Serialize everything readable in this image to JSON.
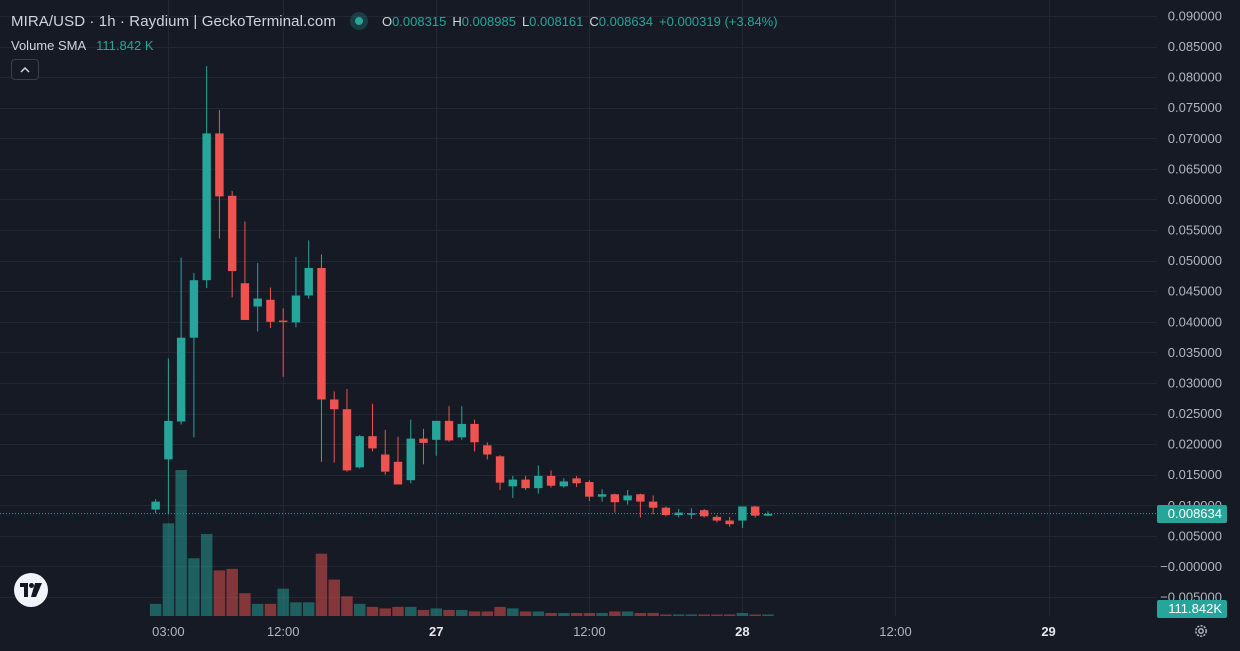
{
  "legend": {
    "title": "MIRA/USD · 1h · Raydium | GeckoTerminal.com",
    "ohlc": [
      {
        "key": "O",
        "value": "0.008315"
      },
      {
        "key": "H",
        "value": "0.008985"
      },
      {
        "key": "L",
        "value": "0.008161"
      },
      {
        "key": "C",
        "value": "0.008634"
      }
    ],
    "change": "+0.000319 (+3.84%)"
  },
  "volume_legend": {
    "label": "Volume SMA",
    "value": "111.842 K"
  },
  "last_price_label": "0.008634",
  "last_volume_label": "111.842K",
  "colors": {
    "up": "#26a69a",
    "down": "#ef5350",
    "background": "#161a25",
    "grid": "#232733"
  },
  "icons": {
    "collapse": "chevron-up-icon",
    "logo": "tradingview-logo-icon",
    "settings": "gear-icon"
  },
  "chart_data": {
    "type": "candlestick",
    "y_axis": {
      "ticks": [
        "0.090000",
        "0.085000",
        "0.080000",
        "0.075000",
        "0.070000",
        "0.065000",
        "0.060000",
        "0.055000",
        "0.050000",
        "0.045000",
        "0.040000",
        "0.035000",
        "0.030000",
        "0.025000",
        "0.020000",
        "0.015000",
        "0.010000",
        "0.005000",
        "−0.000000",
        "−0.005000"
      ],
      "range": [
        -0.0055,
        0.0925
      ]
    },
    "x_axis": {
      "ticks": [
        "03:00",
        "12:00",
        "27",
        "12:00",
        "28",
        "12:00",
        "29"
      ],
      "bold_ticks": [
        "27",
        "28",
        "29"
      ],
      "tick_hours": [
        3,
        12,
        24,
        36,
        48,
        60,
        72
      ],
      "range_hours": [
        -10.2,
        80.5
      ]
    },
    "candles": [
      {
        "t": 2,
        "o": 0.0093,
        "h": 0.011,
        "l": 0.0087,
        "c": 0.0106
      },
      {
        "t": 3,
        "o": 0.0175,
        "h": 0.034,
        "l": 0.0085,
        "c": 0.0238
      },
      {
        "t": 4,
        "o": 0.0237,
        "h": 0.0505,
        "l": 0.0232,
        "c": 0.0374
      },
      {
        "t": 5,
        "o": 0.0374,
        "h": 0.048,
        "l": 0.0211,
        "c": 0.0468
      },
      {
        "t": 6,
        "o": 0.0468,
        "h": 0.0818,
        "l": 0.0455,
        "c": 0.0708
      },
      {
        "t": 7,
        "o": 0.0708,
        "h": 0.0746,
        "l": 0.0536,
        "c": 0.0605
      },
      {
        "t": 8,
        "o": 0.0606,
        "h": 0.0614,
        "l": 0.044,
        "c": 0.0483
      },
      {
        "t": 9,
        "o": 0.0463,
        "h": 0.0564,
        "l": 0.0404,
        "c": 0.0403
      },
      {
        "t": 10,
        "o": 0.0425,
        "h": 0.0496,
        "l": 0.0384,
        "c": 0.0438
      },
      {
        "t": 11,
        "o": 0.0436,
        "h": 0.0456,
        "l": 0.039,
        "c": 0.04
      },
      {
        "t": 12,
        "o": 0.0402,
        "h": 0.0422,
        "l": 0.031,
        "c": 0.04
      },
      {
        "t": 13,
        "o": 0.0399,
        "h": 0.0506,
        "l": 0.0391,
        "c": 0.0443
      },
      {
        "t": 14,
        "o": 0.0443,
        "h": 0.0533,
        "l": 0.0438,
        "c": 0.0488
      },
      {
        "t": 15,
        "o": 0.0488,
        "h": 0.051,
        "l": 0.0171,
        "c": 0.0273
      },
      {
        "t": 16,
        "o": 0.0273,
        "h": 0.0286,
        "l": 0.017,
        "c": 0.0257
      },
      {
        "t": 17,
        "o": 0.0257,
        "h": 0.029,
        "l": 0.0155,
        "c": 0.0157
      },
      {
        "t": 18,
        "o": 0.0162,
        "h": 0.0215,
        "l": 0.016,
        "c": 0.0213
      },
      {
        "t": 19,
        "o": 0.0213,
        "h": 0.0266,
        "l": 0.0188,
        "c": 0.0193
      },
      {
        "t": 20,
        "o": 0.0183,
        "h": 0.0223,
        "l": 0.015,
        "c": 0.0155
      },
      {
        "t": 21,
        "o": 0.0171,
        "h": 0.0212,
        "l": 0.0134,
        "c": 0.0134
      },
      {
        "t": 22,
        "o": 0.0141,
        "h": 0.024,
        "l": 0.0136,
        "c": 0.0209
      },
      {
        "t": 23,
        "o": 0.0209,
        "h": 0.0225,
        "l": 0.0167,
        "c": 0.0202
      },
      {
        "t": 24,
        "o": 0.0207,
        "h": 0.0236,
        "l": 0.0181,
        "c": 0.0238
      },
      {
        "t": 25,
        "o": 0.0238,
        "h": 0.0262,
        "l": 0.0204,
        "c": 0.0206
      },
      {
        "t": 26,
        "o": 0.0211,
        "h": 0.0262,
        "l": 0.0207,
        "c": 0.0233
      },
      {
        "t": 27,
        "o": 0.0233,
        "h": 0.024,
        "l": 0.0188,
        "c": 0.0203
      },
      {
        "t": 28,
        "o": 0.0198,
        "h": 0.0203,
        "l": 0.0175,
        "c": 0.0183
      },
      {
        "t": 29,
        "o": 0.018,
        "h": 0.0182,
        "l": 0.0125,
        "c": 0.0137
      },
      {
        "t": 30,
        "o": 0.0131,
        "h": 0.0148,
        "l": 0.0112,
        "c": 0.0142
      },
      {
        "t": 31,
        "o": 0.0142,
        "h": 0.0148,
        "l": 0.0125,
        "c": 0.0128
      },
      {
        "t": 32,
        "o": 0.0128,
        "h": 0.0165,
        "l": 0.0119,
        "c": 0.0148
      },
      {
        "t": 33,
        "o": 0.0148,
        "h": 0.0157,
        "l": 0.0129,
        "c": 0.0132
      },
      {
        "t": 34,
        "o": 0.0131,
        "h": 0.0144,
        "l": 0.0129,
        "c": 0.0139
      },
      {
        "t": 35,
        "o": 0.0144,
        "h": 0.0148,
        "l": 0.013,
        "c": 0.0136
      },
      {
        "t": 36,
        "o": 0.0138,
        "h": 0.0141,
        "l": 0.0107,
        "c": 0.0114
      },
      {
        "t": 37,
        "o": 0.0114,
        "h": 0.0126,
        "l": 0.0106,
        "c": 0.0118
      },
      {
        "t": 38,
        "o": 0.0118,
        "h": 0.0119,
        "l": 0.0088,
        "c": 0.0105
      },
      {
        "t": 39,
        "o": 0.0108,
        "h": 0.0125,
        "l": 0.0101,
        "c": 0.0116
      },
      {
        "t": 40,
        "o": 0.0118,
        "h": 0.0119,
        "l": 0.008,
        "c": 0.0106
      },
      {
        "t": 41,
        "o": 0.0106,
        "h": 0.0116,
        "l": 0.0085,
        "c": 0.0096
      },
      {
        "t": 42,
        "o": 0.0096,
        "h": 0.0098,
        "l": 0.0082,
        "c": 0.0084
      },
      {
        "t": 43,
        "o": 0.0084,
        "h": 0.0094,
        "l": 0.008,
        "c": 0.0088
      },
      {
        "t": 44,
        "o": 0.0086,
        "h": 0.0095,
        "l": 0.0078,
        "c": 0.0087
      },
      {
        "t": 45,
        "o": 0.0092,
        "h": 0.0094,
        "l": 0.008,
        "c": 0.0082
      },
      {
        "t": 46,
        "o": 0.0081,
        "h": 0.0084,
        "l": 0.0072,
        "c": 0.0075
      },
      {
        "t": 47,
        "o": 0.0075,
        "h": 0.0081,
        "l": 0.0065,
        "c": 0.0069
      },
      {
        "t": 48,
        "o": 0.0075,
        "h": 0.0098,
        "l": 0.0063,
        "c": 0.0098
      },
      {
        "t": 49,
        "o": 0.0098,
        "h": 0.0099,
        "l": 0.008,
        "c": 0.0083
      },
      {
        "t": 50,
        "o": 0.0083,
        "h": 0.009,
        "l": 0.0082,
        "c": 0.0086
      }
    ],
    "volume": {
      "range": [
        0,
        1
      ],
      "bars": [
        {
          "t": 2,
          "v": 0.08,
          "up": true
        },
        {
          "t": 3,
          "v": 0.61,
          "up": true
        },
        {
          "t": 4,
          "v": 0.96,
          "up": true
        },
        {
          "t": 5,
          "v": 0.38,
          "up": true
        },
        {
          "t": 6,
          "v": 0.54,
          "up": true
        },
        {
          "t": 7,
          "v": 0.3,
          "up": false
        },
        {
          "t": 8,
          "v": 0.31,
          "up": false
        },
        {
          "t": 9,
          "v": 0.15,
          "up": false
        },
        {
          "t": 10,
          "v": 0.08,
          "up": true
        },
        {
          "t": 11,
          "v": 0.08,
          "up": false
        },
        {
          "t": 12,
          "v": 0.18,
          "up": true
        },
        {
          "t": 13,
          "v": 0.09,
          "up": true
        },
        {
          "t": 14,
          "v": 0.09,
          "up": true
        },
        {
          "t": 15,
          "v": 0.41,
          "up": false
        },
        {
          "t": 16,
          "v": 0.24,
          "up": false
        },
        {
          "t": 17,
          "v": 0.13,
          "up": false
        },
        {
          "t": 18,
          "v": 0.08,
          "up": true
        },
        {
          "t": 19,
          "v": 0.06,
          "up": false
        },
        {
          "t": 20,
          "v": 0.05,
          "up": false
        },
        {
          "t": 21,
          "v": 0.06,
          "up": false
        },
        {
          "t": 22,
          "v": 0.06,
          "up": true
        },
        {
          "t": 23,
          "v": 0.04,
          "up": false
        },
        {
          "t": 24,
          "v": 0.05,
          "up": true
        },
        {
          "t": 25,
          "v": 0.04,
          "up": false
        },
        {
          "t": 26,
          "v": 0.04,
          "up": true
        },
        {
          "t": 27,
          "v": 0.03,
          "up": false
        },
        {
          "t": 28,
          "v": 0.03,
          "up": false
        },
        {
          "t": 29,
          "v": 0.06,
          "up": false
        },
        {
          "t": 30,
          "v": 0.05,
          "up": true
        },
        {
          "t": 31,
          "v": 0.03,
          "up": false
        },
        {
          "t": 32,
          "v": 0.03,
          "up": true
        },
        {
          "t": 33,
          "v": 0.02,
          "up": false
        },
        {
          "t": 34,
          "v": 0.02,
          "up": true
        },
        {
          "t": 35,
          "v": 0.02,
          "up": false
        },
        {
          "t": 36,
          "v": 0.02,
          "up": false
        },
        {
          "t": 37,
          "v": 0.02,
          "up": true
        },
        {
          "t": 38,
          "v": 0.03,
          "up": false
        },
        {
          "t": 39,
          "v": 0.03,
          "up": true
        },
        {
          "t": 40,
          "v": 0.02,
          "up": false
        },
        {
          "t": 41,
          "v": 0.02,
          "up": false
        },
        {
          "t": 42,
          "v": 0.01,
          "up": false
        },
        {
          "t": 43,
          "v": 0.01,
          "up": true
        },
        {
          "t": 44,
          "v": 0.01,
          "up": true
        },
        {
          "t": 45,
          "v": 0.01,
          "up": false
        },
        {
          "t": 46,
          "v": 0.01,
          "up": false
        },
        {
          "t": 47,
          "v": 0.01,
          "up": false
        },
        {
          "t": 48,
          "v": 0.02,
          "up": true
        },
        {
          "t": 49,
          "v": 0.01,
          "up": false
        },
        {
          "t": 50,
          "v": 0.01,
          "up": true
        }
      ]
    },
    "last_price": 0.008634
  }
}
